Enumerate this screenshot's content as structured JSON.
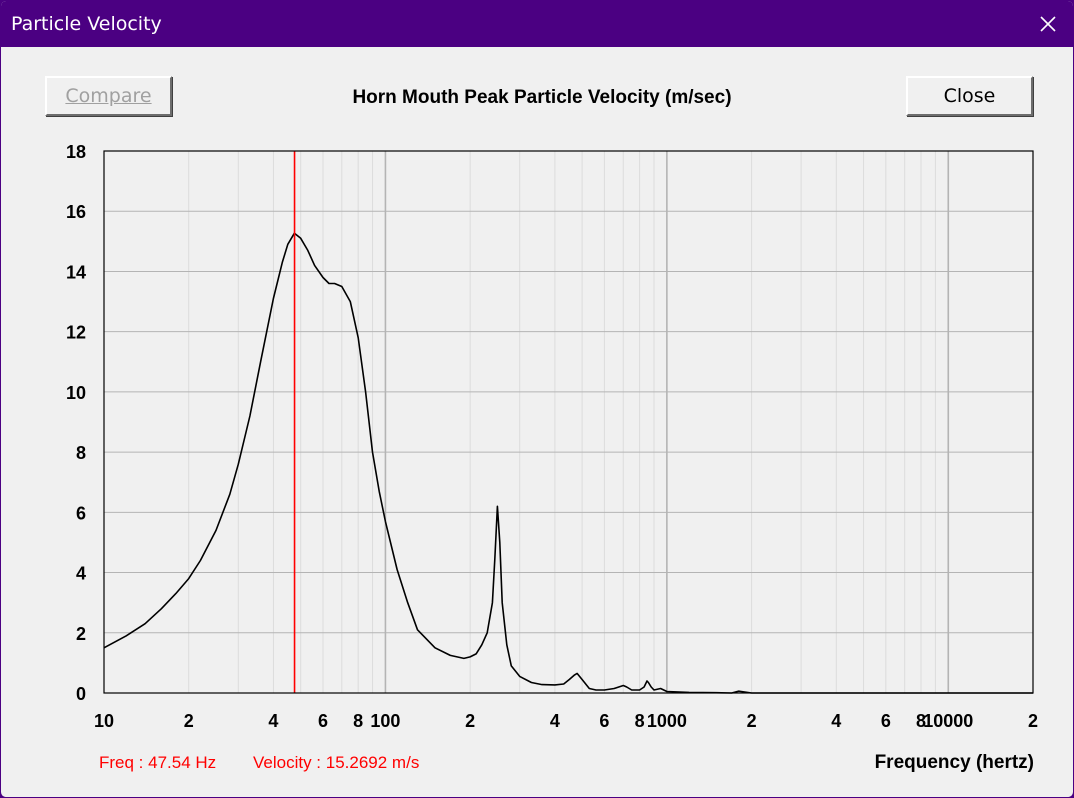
{
  "window": {
    "title": "Particle Velocity"
  },
  "toolbar": {
    "compare_label": "Compare",
    "close_label": "Close"
  },
  "chart_data": {
    "type": "line",
    "title": "Horn Mouth Peak Particle Velocity (m/sec)",
    "xlabel": "Frequency (hertz)",
    "ylabel": "",
    "x_scale": "log",
    "xlim": [
      10,
      20000
    ],
    "ylim": [
      0,
      18
    ],
    "grid": true,
    "y_ticks": [
      0,
      2,
      4,
      6,
      8,
      10,
      12,
      14,
      16,
      18
    ],
    "x_tick_labels": [
      {
        "x": 10,
        "label": "10"
      },
      {
        "x": 20,
        "label": "2"
      },
      {
        "x": 40,
        "label": "4"
      },
      {
        "x": 60,
        "label": "6"
      },
      {
        "x": 80,
        "label": "8"
      },
      {
        "x": 100,
        "label": "100"
      },
      {
        "x": 200,
        "label": "2"
      },
      {
        "x": 400,
        "label": "4"
      },
      {
        "x": 600,
        "label": "6"
      },
      {
        "x": 800,
        "label": "8"
      },
      {
        "x": 1000,
        "label": "1000"
      },
      {
        "x": 2000,
        "label": "2"
      },
      {
        "x": 4000,
        "label": "4"
      },
      {
        "x": 6000,
        "label": "6"
      },
      {
        "x": 8000,
        "label": "8"
      },
      {
        "x": 10000,
        "label": "10000"
      },
      {
        "x": 20000,
        "label": "2"
      }
    ],
    "series": [
      {
        "line_color": "#000000",
        "x": [
          10,
          12,
          14,
          16,
          18,
          20,
          22,
          25,
          28,
          30,
          33,
          36,
          40,
          43,
          45,
          47.5,
          50,
          53,
          56,
          60,
          63,
          66,
          70,
          75,
          80,
          85,
          90,
          95,
          100,
          110,
          120,
          130,
          150,
          170,
          190,
          200,
          210,
          220,
          230,
          240,
          245,
          250,
          255,
          260,
          270,
          280,
          300,
          330,
          360,
          400,
          430,
          450,
          470,
          480,
          500,
          530,
          560,
          600,
          650,
          700,
          720,
          750,
          800,
          830,
          850,
          860,
          880,
          900,
          950,
          1000,
          1200,
          1500,
          1700,
          1800,
          2000,
          5000,
          10000,
          20000
        ],
        "y": [
          1.5,
          1.9,
          2.3,
          2.8,
          3.3,
          3.8,
          4.4,
          5.4,
          6.6,
          7.6,
          9.2,
          11.0,
          13.1,
          14.3,
          14.9,
          15.27,
          15.1,
          14.7,
          14.2,
          13.8,
          13.6,
          13.6,
          13.5,
          13.0,
          11.8,
          10.0,
          8.0,
          6.7,
          5.7,
          4.1,
          3.0,
          2.1,
          1.5,
          1.25,
          1.15,
          1.2,
          1.3,
          1.6,
          2.0,
          3.0,
          4.5,
          6.2,
          5.0,
          3.0,
          1.6,
          0.9,
          0.55,
          0.35,
          0.28,
          0.27,
          0.3,
          0.45,
          0.6,
          0.65,
          0.45,
          0.15,
          0.1,
          0.1,
          0.15,
          0.25,
          0.2,
          0.1,
          0.1,
          0.2,
          0.4,
          0.35,
          0.2,
          0.1,
          0.15,
          0.05,
          0.02,
          0.01,
          0.0,
          0.06,
          0.0,
          0.0,
          0.0,
          0.0
        ]
      }
    ],
    "marker": {
      "x": 47.54,
      "color": "#ff0000"
    }
  },
  "readout": {
    "freq_text": "Freq : 47.54 Hz",
    "velocity_text": "Velocity : 15.2692 m/s"
  },
  "colors": {
    "titlebar": "#4b0082",
    "background": "#f0f0f0",
    "grid_major": "#b4b4b4",
    "grid_minor": "#dcdcdc",
    "marker": "#ff0000"
  }
}
